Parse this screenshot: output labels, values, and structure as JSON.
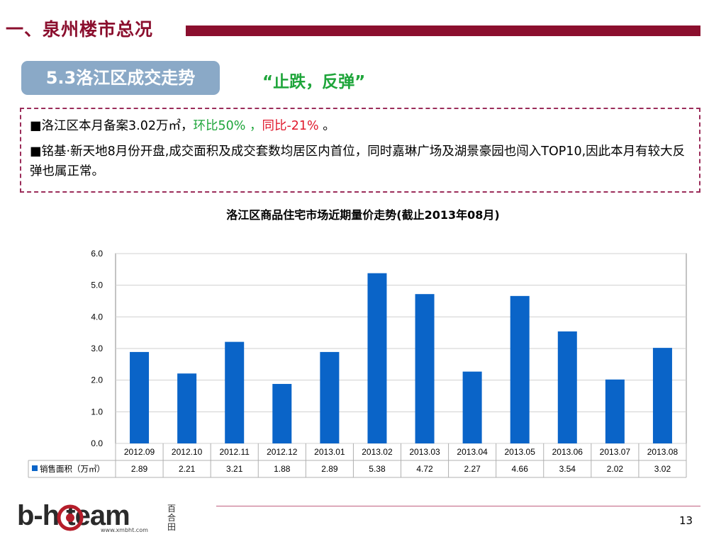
{
  "header": {
    "section_title": "一、泉州楼市总况",
    "subtitle": "5.3洛江区成交走势",
    "slogan": "“止跌，反弹”"
  },
  "notes": {
    "line1_prefix": "■洛江区本月备案3.02万㎡，",
    "line1_green": "环比50% ，",
    "line1_red": "同比-21%",
    "line1_suffix": " 。",
    "line2": "■铭基·新天地8月份开盘,成交面积及成交套数均居区内首位，同时嘉琳广场及湖景豪园也闯入TOP10,因此本月有较大反弹也属正常。"
  },
  "chart_data": {
    "type": "bar",
    "title": "洛江区商品住宅市场近期量价走势(截止2013年08月)",
    "categories": [
      "2012.09",
      "2012.10",
      "2012.11",
      "2012.12",
      "2013.01",
      "2013.02",
      "2013.03",
      "2013.04",
      "2013.05",
      "2013.06",
      "2013.07",
      "2013.08"
    ],
    "series": [
      {
        "name": "销售面积（万㎡）",
        "values": [
          2.89,
          2.21,
          3.21,
          1.88,
          2.89,
          5.38,
          4.72,
          2.27,
          4.66,
          3.54,
          2.02,
          3.02
        ],
        "color": "#0a64c8"
      }
    ],
    "value_labels": [
      "2.89",
      "2.21",
      "3.21",
      "1.88",
      "2.89",
      "5.38",
      "4.72",
      "2.27",
      "4.66",
      "3.54",
      "2.02",
      "3.02"
    ],
    "ylim": [
      0,
      6
    ],
    "yticks": [
      "0.0",
      "1.0",
      "2.0",
      "3.0",
      "4.0",
      "5.0",
      "6.0"
    ],
    "grid": true,
    "data_table": true
  },
  "footer": {
    "page_number": "13",
    "logo_text": "b-h   team",
    "logo_url": "www.xmbht.com",
    "logo_cn": "百合田"
  },
  "colors": {
    "brand": "#8b0f2e",
    "bar": "#0a64c8",
    "green": "#1ea53a",
    "red": "#e0192c"
  }
}
